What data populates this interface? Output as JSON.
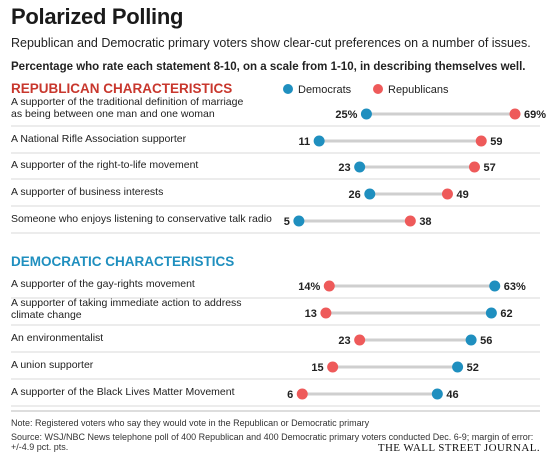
{
  "header": {
    "title": "Polarized Polling",
    "subtitle": "Republican and Democratic primary voters show clear-cut preferences on a number of issues.",
    "description": "Percentage who rate each statement 8-10, on a scale from 1-10, in describing themselves well."
  },
  "legend": {
    "democrats": "Democrats",
    "republicans": "Republicans"
  },
  "colors": {
    "democrats": "#1f8fbf",
    "republicans": "#ee5a5a",
    "section_heading": "#c8372d",
    "section_heading_dem": "#1f8fbf",
    "connector": "#cfcfcf",
    "row_rule": "#d8d8d8"
  },
  "chart_data": {
    "type": "dot",
    "xlim": [
      0,
      75
    ],
    "series": [
      {
        "name": "Democrats"
      },
      {
        "name": "Republicans"
      }
    ],
    "sections": [
      {
        "heading": "REPUBLICAN CHARACTERISTICS",
        "rows": [
          {
            "label": "A supporter of the traditional definition of marriage as being between one man and one woman",
            "dem": 25,
            "rep": 69,
            "dem_label": "25%",
            "rep_label": "69%"
          },
          {
            "label": "A National Rifle Association supporter",
            "dem": 11,
            "rep": 59,
            "dem_label": "11",
            "rep_label": "59"
          },
          {
            "label": "A supporter of the right-to-life movement",
            "dem": 23,
            "rep": 57,
            "dem_label": "23",
            "rep_label": "57"
          },
          {
            "label": "A supporter of business interests",
            "dem": 26,
            "rep": 49,
            "dem_label": "26",
            "rep_label": "49"
          },
          {
            "label": "Someone who enjoys listening to conservative talk radio",
            "dem": 5,
            "rep": 38,
            "dem_label": "5",
            "rep_label": "38"
          }
        ]
      },
      {
        "heading": "DEMOCRATIC CHARACTERISTICS",
        "rows": [
          {
            "label": "A supporter of the gay-rights movement",
            "dem": 63,
            "rep": 14,
            "dem_label": "63%",
            "rep_label": "14%"
          },
          {
            "label": "A supporter of taking immediate action to address climate change",
            "dem": 62,
            "rep": 13,
            "dem_label": "62",
            "rep_label": "13"
          },
          {
            "label": "An environmentalist",
            "dem": 56,
            "rep": 23,
            "dem_label": "56",
            "rep_label": "23"
          },
          {
            "label": "A union supporter",
            "dem": 52,
            "rep": 15,
            "dem_label": "52",
            "rep_label": "15"
          },
          {
            "label": "A supporter of the Black Lives Matter Movement",
            "dem": 46,
            "rep": 6,
            "dem_label": "46",
            "rep_label": "6"
          }
        ]
      }
    ]
  },
  "footer": {
    "note": "Note: Registered voters who say they would vote in the Republican or Democratic primary",
    "source": "Source: WSJ/NBC News telephone poll of 400 Republican and 400 Democratic primary voters conducted Dec. 6-9; margin of error: +/-4.9 pct. pts.",
    "brand": "THE WALL STREET JOURNAL."
  }
}
